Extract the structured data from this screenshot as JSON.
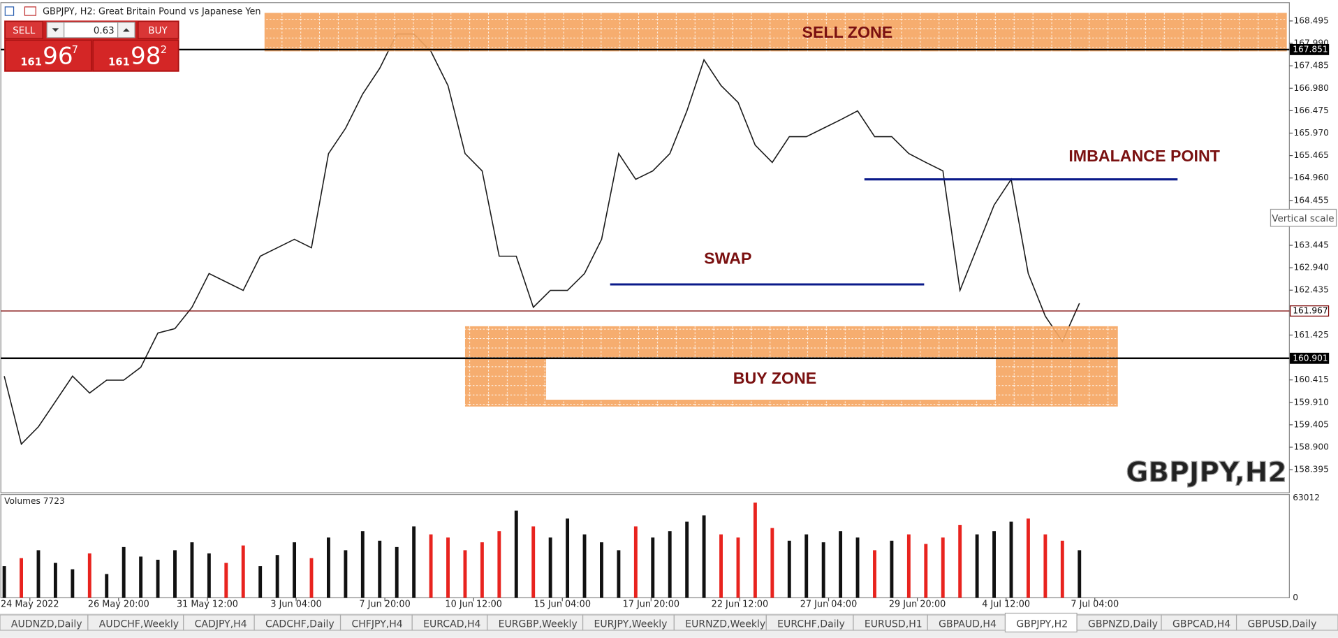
{
  "window": {
    "title": "GBPJPY, H2:  Great Britain Pound vs Japanese Yen"
  },
  "trade_panel": {
    "sell": "SELL",
    "buy": "BUY",
    "lot": "0.63",
    "bid": {
      "big": "161",
      "main": "96",
      "pip": "7"
    },
    "ask": {
      "big": "161",
      "main": "98",
      "pip": "2"
    }
  },
  "price_axis": {
    "ylim": [
      157.875,
      168.907
    ],
    "yticks": [
      168.495,
      {
        "value": 167.99,
        "label": "167.990"
      },
      167.485,
      {
        "value": 166.98,
        "label": "166.980"
      },
      166.475,
      {
        "value": 165.97,
        "label": "165.970"
      },
      165.465,
      {
        "value": 164.96,
        "label": "164.960"
      },
      164.455,
      163.445,
      {
        "value": 162.94,
        "label": "162.940"
      },
      162.435,
      161.425,
      160.415,
      {
        "value": 159.91,
        "label": "159.910"
      },
      159.405,
      {
        "value": 158.9,
        "label": "158.900"
      },
      158.395
    ],
    "levels": [
      167.851,
      161.967,
      160.901
    ]
  },
  "price_line": {
    "values": [
      160.5,
      158.97,
      159.36,
      159.93,
      160.5,
      160.12,
      160.41,
      160.41,
      160.7,
      161.47,
      161.57,
      162.05,
      162.81,
      162.62,
      162.43,
      163.2,
      163.39,
      163.58,
      163.39,
      165.51,
      166.08,
      166.85,
      167.43,
      168.2,
      168.2,
      167.81,
      167.04,
      165.51,
      165.12,
      163.2,
      163.2,
      162.05,
      162.43,
      162.43,
      162.81,
      163.58,
      165.51,
      164.93,
      165.12,
      165.51,
      166.47,
      167.62,
      167.04,
      166.66,
      165.7,
      165.31,
      165.89,
      165.89,
      166.08,
      166.27,
      166.47,
      165.89,
      165.89,
      165.51,
      165.31,
      165.12,
      162.43,
      163.39,
      164.35,
      164.93,
      162.81,
      161.85,
      161.28,
      162.14
    ]
  },
  "annotations": {
    "sell_zone": "SELL ZONE",
    "buy_zone": "BUY ZONE",
    "swap": "SWAP",
    "imbalance": "IMBALANCE POINT",
    "symbol": "GBPJPY,H2"
  },
  "tooltip": "Vertical scale",
  "volumes": {
    "title": "Volumes 7723",
    "ylim": [
      0,
      63012
    ],
    "yticks": [
      63012,
      0
    ],
    "values": [
      20000,
      25000,
      30000,
      22000,
      18000,
      28000,
      15000,
      32000,
      26000,
      24000,
      30000,
      35000,
      28000,
      22000,
      33000,
      20000,
      27000,
      35000,
      25000,
      38000,
      30000,
      42000,
      36000,
      32000,
      45000,
      40000,
      38000,
      30000,
      35000,
      42000,
      55000,
      45000,
      38000,
      50000,
      40000,
      35000,
      30000,
      45000,
      38000,
      42000,
      48000,
      52000,
      40000,
      38000,
      60000,
      44000,
      36000,
      40000,
      35000,
      42000,
      38000,
      30000,
      36000,
      40000,
      34000,
      38000,
      46000,
      40000,
      42000,
      48000,
      50000,
      40000,
      36000,
      30000
    ]
  },
  "time_axis": {
    "labels": [
      "24 May 2022",
      "26 May 20:00",
      "31 May 12:00",
      "3 Jun 04:00",
      "7 Jun 20:00",
      "10 Jun 12:00",
      "15 Jun 04:00",
      "17 Jun 20:00",
      "22 Jun 12:00",
      "27 Jun 04:00",
      "29 Jun 20:00",
      "4 Jul 12:00",
      "7 Jul 04:00"
    ]
  },
  "tabs": {
    "items": [
      "AUDNZD,Daily",
      "AUDCHF,Weekly",
      "CADJPY,H4",
      "CADCHF,Daily",
      "CHFJPY,H4",
      "EURCAD,H4",
      "EURGBP,Weekly",
      "EURJPY,Weekly",
      "EURNZD,Weekly",
      "EURCHF,Daily",
      "EURUSD,H1",
      "GBPAUD,H4",
      "GBPJPY,H2",
      "GBPNZD,Daily",
      "GBPCAD,H4",
      "GBPUSD,Daily"
    ],
    "active": 12
  }
}
